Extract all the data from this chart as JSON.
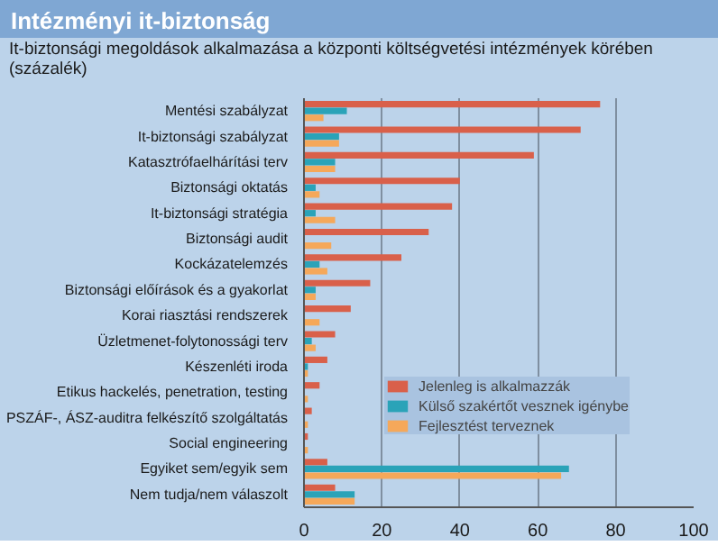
{
  "chart_data": {
    "type": "bar",
    "orientation": "horizontal",
    "title": "Intézményi it-biztonság",
    "subtitle": "It-biztonsági megoldások alkalmazása a központi költségvetési intézmények körében\n(százalék)",
    "categories": [
      "Mentési szabályzat",
      "It-biztonsági szabályzat",
      "Katasztrófaelhárítási terv",
      "Biztonsági oktatás",
      "It-biztonsági stratégia",
      "Biztonsági audit",
      "Kockázatelemzés",
      "Biztonsági előírások és a gyakorlat",
      "Korai riasztási rendszerek",
      "Üzletmenet-folytonossági terv",
      "Készenléti iroda",
      "Etikus hackelés, penetration, testing",
      "PSZÁF-, ÁSZ-auditra felkészítő szolgáltatás",
      "Social engineering",
      "Egyiket sem/egyik sem",
      "Nem tudja/nem válaszolt"
    ],
    "series": [
      {
        "name": "Jelenleg is alkalmazzák",
        "color": "#d9604a",
        "values": [
          76,
          71,
          59,
          40,
          38,
          32,
          25,
          17,
          12,
          8,
          6,
          4,
          2,
          1,
          6,
          8
        ]
      },
      {
        "name": "Külső szakértőt vesznek igénybe",
        "color": "#2aa3b8",
        "values": [
          11,
          9,
          8,
          3,
          3,
          0,
          4,
          3,
          0,
          2,
          1,
          0,
          0,
          0,
          68,
          13
        ]
      },
      {
        "name": "Fejlesztést terveznek",
        "color": "#f5a85a",
        "values": [
          5,
          9,
          8,
          4,
          8,
          7,
          6,
          3,
          4,
          3,
          1,
          1,
          1,
          1,
          66,
          13
        ]
      }
    ],
    "xlim": [
      0,
      100
    ],
    "xticks": [
      0,
      20,
      40,
      60,
      80,
      100
    ],
    "grid": "x",
    "legend": "right"
  }
}
